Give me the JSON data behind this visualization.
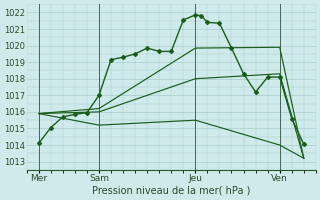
{
  "background_color": "#ceeaea",
  "grid_color": "#aacccc",
  "line_color": "#1a5c1a",
  "xlabel": "Pression niveau de la mer( hPa )",
  "ylim": [
    1012.5,
    1022.5
  ],
  "yticks": [
    1013,
    1014,
    1015,
    1016,
    1017,
    1018,
    1019,
    1020,
    1021,
    1022
  ],
  "xlim": [
    0,
    12
  ],
  "day_labels": [
    "Mer",
    "Sam",
    "Jeu",
    "Ven"
  ],
  "day_positions": [
    0.5,
    3.0,
    7.0,
    10.5
  ],
  "vline_positions": [
    0.5,
    3.0,
    7.0,
    10.5
  ],
  "main_series": {
    "x": [
      0.5,
      1.0,
      1.5,
      2.0,
      2.5,
      3.0,
      3.5,
      4.0,
      4.5,
      5.0,
      5.5,
      6.0,
      6.5,
      7.0,
      7.25,
      7.5,
      8.0,
      8.5,
      9.0,
      9.5,
      10.0,
      10.5,
      11.0,
      11.5
    ],
    "y": [
      1014.1,
      1015.05,
      1015.7,
      1015.85,
      1015.95,
      1017.0,
      1019.15,
      1019.3,
      1019.5,
      1019.85,
      1019.65,
      1019.65,
      1021.55,
      1021.85,
      1021.8,
      1021.4,
      1021.35,
      1019.85,
      1018.3,
      1017.2,
      1018.1,
      1018.1,
      1015.6,
      1014.05
    ],
    "marker": "D",
    "markersize": 2.0,
    "linewidth": 1.0
  },
  "straight_lines": [
    {
      "x": [
        0.5,
        3.0,
        7.0,
        10.5,
        11.5
      ],
      "y": [
        1015.9,
        1016.2,
        1019.85,
        1019.9,
        1013.2
      ]
    },
    {
      "x": [
        0.5,
        3.0,
        7.0,
        10.5,
        11.5
      ],
      "y": [
        1015.9,
        1016.0,
        1018.0,
        1018.3,
        1013.2
      ]
    },
    {
      "x": [
        0.5,
        3.0,
        7.0,
        10.5,
        11.5
      ],
      "y": [
        1015.9,
        1015.2,
        1015.5,
        1014.0,
        1013.2
      ]
    }
  ]
}
